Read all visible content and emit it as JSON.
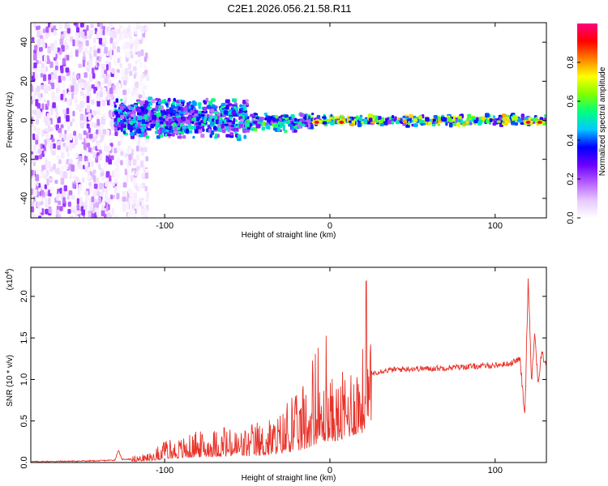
{
  "title": "C2E1.2026.056.21.58.R11",
  "chart_data": [
    {
      "type": "heatmap",
      "xlabel": "Height of straight line (km)",
      "ylabel": "Frequency (Hz)",
      "xlim": [
        -181,
        131
      ],
      "ylim": [
        -50,
        50
      ],
      "xticks": [
        -100,
        0,
        100
      ],
      "yticks": [
        -40,
        -20,
        0,
        20,
        40
      ],
      "colorbar": {
        "label": "Normalized spectral amplitude",
        "range": [
          0,
          1
        ],
        "ticks": [
          "0.0",
          "0.2",
          "0.4",
          "0.6",
          "0.8"
        ],
        "tick_values": [
          0,
          0.2,
          0.4,
          0.6,
          0.8
        ],
        "colors": [
          "#ffffff",
          "#e6c8ff",
          "#b65cff",
          "#6a00ff",
          "#0000ff",
          "#00c8ff",
          "#00ff80",
          "#80ff00",
          "#ffff00",
          "#ff8000",
          "#ff0000",
          "#ff0080"
        ]
      },
      "regions": [
        {
          "x_range": [
            -181,
            -130
          ],
          "y_range": [
            -50,
            50
          ],
          "amplitude": 0.15,
          "pattern": "sparse noise"
        },
        {
          "x_range": [
            -130,
            -110
          ],
          "y_range": [
            -50,
            50
          ],
          "amplitude": 0.08,
          "pattern": "sparse noise"
        },
        {
          "x_range": [
            -130,
            -50
          ],
          "y_range": [
            -10,
            12
          ],
          "amplitude": 0.35,
          "pattern": "broad band"
        },
        {
          "x_range": [
            -50,
            -10
          ],
          "y_range": [
            -6,
            4
          ],
          "amplitude": 0.4,
          "pattern": "narrowing band"
        },
        {
          "x_range": [
            -10,
            131
          ],
          "y_range": [
            -3,
            3
          ],
          "amplitude": 0.5,
          "pattern": "narrow line near 0 Hz"
        }
      ],
      "peaks": [
        {
          "x": -8,
          "y": -1,
          "amplitude": 0.95
        },
        {
          "x": 7,
          "y": -1,
          "amplitude": 0.9
        },
        {
          "x": 120,
          "y": -1,
          "amplitude": 0.95
        },
        {
          "x": 127,
          "y": -1,
          "amplitude": 0.9
        }
      ]
    },
    {
      "type": "line",
      "xlabel": "Height of straight line (km)",
      "ylabel": "SNR (10 * v/v)",
      "y_exponent": "(x10",
      "y_exponent_power": "4",
      "xlim": [
        -181,
        131
      ],
      "ylim": [
        0,
        2.35
      ],
      "xticks": [
        -100,
        0,
        100
      ],
      "yticks": [
        "0.0",
        "0.5",
        "1.0",
        "1.5",
        "2.0"
      ],
      "ytick_values": [
        0,
        0.5,
        1.0,
        1.5,
        2.0
      ],
      "color": "#e8332a",
      "series": [
        {
          "name": "SNR",
          "x": [
            -181,
            -160,
            -140,
            -130,
            -128,
            -126,
            -120,
            -110,
            -100,
            -90,
            -80,
            -70,
            -60,
            -50,
            -40,
            -30,
            -20,
            -15,
            -10,
            -5,
            0,
            5,
            10,
            15,
            20,
            25,
            30,
            40,
            50,
            60,
            70,
            80,
            90,
            100,
            105,
            110,
            115,
            118,
            120,
            122,
            124,
            126,
            128,
            131
          ],
          "y": [
            0.01,
            0.015,
            0.02,
            0.03,
            0.15,
            0.04,
            0.04,
            0.05,
            0.12,
            0.15,
            0.18,
            0.2,
            0.2,
            0.21,
            0.24,
            0.3,
            0.4,
            0.45,
            0.6,
            0.7,
            0.75,
            0.72,
            0.85,
            0.95,
            1.02,
            1.07,
            1.1,
            1.12,
            1.13,
            1.13,
            1.14,
            1.15,
            1.16,
            1.17,
            1.18,
            1.2,
            1.25,
            0.55,
            2.25,
            1.0,
            1.55,
            0.95,
            1.3,
            1.2
          ]
        }
      ]
    }
  ]
}
